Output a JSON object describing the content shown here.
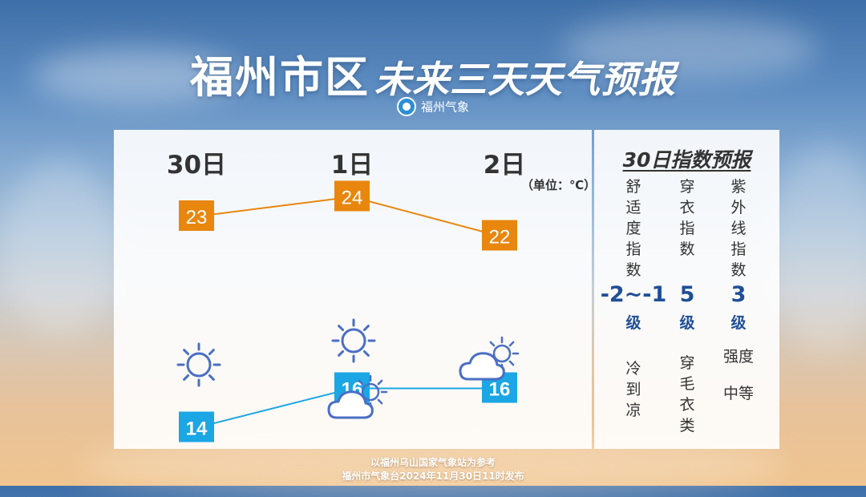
{
  "title": {
    "main": "福州市区",
    "sub": "未来三天天气预报"
  },
  "brand": {
    "name": "福州气象"
  },
  "forecast": {
    "unit_label": "（单位：℃）",
    "days": [
      {
        "label": "30日",
        "high": "23",
        "low": "14",
        "weather_icons": [
          "sun-icon"
        ]
      },
      {
        "label": "1日",
        "high": "24",
        "low": "16",
        "weather_icons": [
          "sun-icon",
          "partly-cloudy-icon"
        ]
      },
      {
        "label": "2日",
        "high": "22",
        "low": "16",
        "weather_icons": [
          "partly-cloudy-icon"
        ]
      }
    ],
    "colors": {
      "high": "#E8860E",
      "low": "#1BA6E4",
      "icon": "#4A6FC4"
    }
  },
  "index": {
    "title": "30日指数预报",
    "items": [
      {
        "name": "舒适度指数",
        "value": "-2~-1",
        "level": "级",
        "desc": "冷到凉"
      },
      {
        "name": "穿衣指数",
        "value": "5",
        "level": "级",
        "desc": "穿毛衣类"
      },
      {
        "name": "紫外线指数",
        "value": "3",
        "level": "级",
        "desc_lines": [
          "强度",
          "中等"
        ]
      }
    ]
  },
  "footer": {
    "line1": "以福州乌山国家气象站为参考",
    "line2": "福州市气象台2024年11月30日11时发布"
  }
}
